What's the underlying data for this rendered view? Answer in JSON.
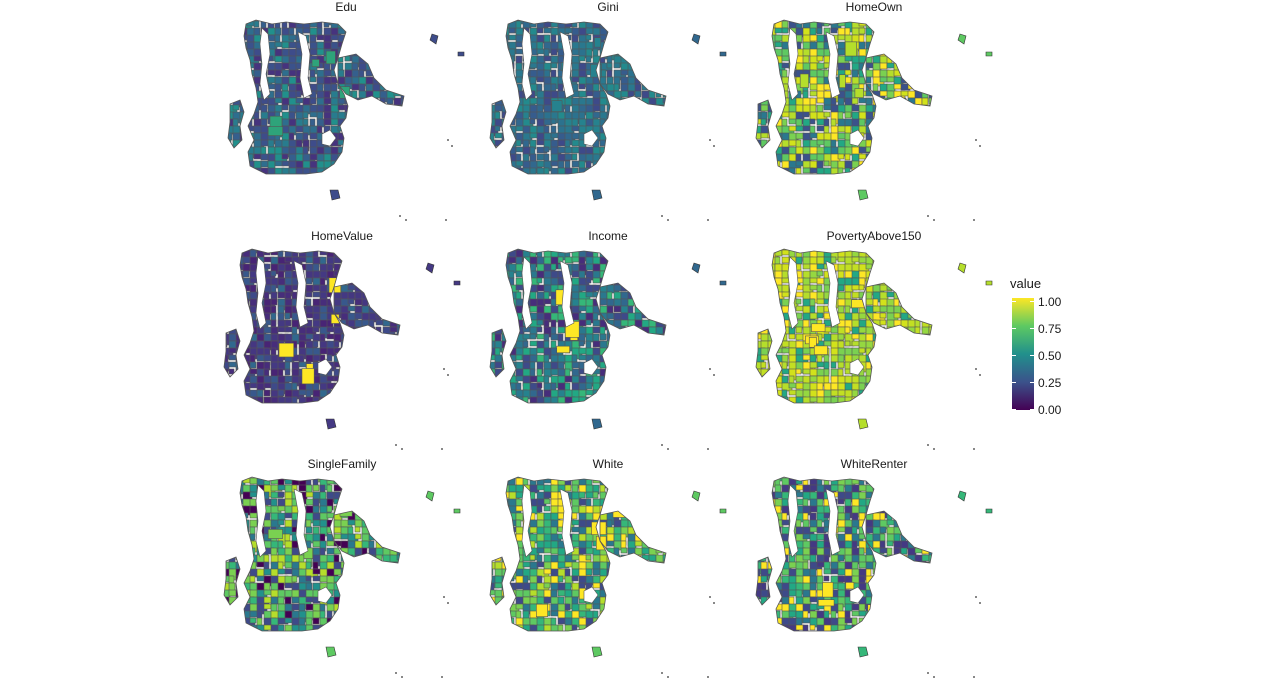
{
  "panels": [
    {
      "title": "Edu",
      "palette": [
        "#3e4c8a",
        "#355f8d",
        "#2e6e8e",
        "#287c8e",
        "#3b528b",
        "#21908c",
        "#46337e"
      ],
      "highlight": "#2ea37a",
      "level_mean": 0.25
    },
    {
      "title": "Gini",
      "palette": [
        "#31688e",
        "#2c728e",
        "#26828e",
        "#3e4a89",
        "#2a788e",
        "#238a8d",
        "#365c8d"
      ],
      "highlight": "#26828e",
      "level_mean": 0.35
    },
    {
      "title": "HomeOwn",
      "palette": [
        "#5ec962",
        "#7ad151",
        "#b5de2b",
        "#2a788e",
        "#22a884",
        "#d2e21b",
        "#3b528b",
        "#fde725"
      ],
      "highlight": "#b5de2b",
      "level_mean": 0.65
    },
    {
      "title": "HomeValue",
      "palette": [
        "#443983",
        "#3e4a89",
        "#453781",
        "#38588c",
        "#472d7b",
        "#482475",
        "#31688e"
      ],
      "highlight": "#fde725",
      "level_mean": 0.12
    },
    {
      "title": "Income",
      "palette": [
        "#31688e",
        "#2a788e",
        "#3e4a89",
        "#26828e",
        "#22a884",
        "#472d7b",
        "#35b779"
      ],
      "highlight": "#fde725",
      "level_mean": 0.3
    },
    {
      "title": "PovertyAbove150",
      "palette": [
        "#b5de2b",
        "#d2e21b",
        "#95d840",
        "#fde725",
        "#7ad151",
        "#22a884",
        "#c2df23"
      ],
      "highlight": "#fde725",
      "level_mean": 0.85
    },
    {
      "title": "SingleFamily",
      "palette": [
        "#5ec962",
        "#2a788e",
        "#35b779",
        "#21918c",
        "#7ad151",
        "#3e4a89",
        "#b5de2b",
        "#440154"
      ],
      "highlight": "#7ad151",
      "level_mean": 0.55
    },
    {
      "title": "White",
      "palette": [
        "#5ec962",
        "#7ad151",
        "#35b779",
        "#2a788e",
        "#b5de2b",
        "#22a884",
        "#3e4a89",
        "#fde725"
      ],
      "highlight": "#fde725",
      "level_mean": 0.6
    },
    {
      "title": "WhiteRenter",
      "palette": [
        "#35b779",
        "#5ec962",
        "#2a788e",
        "#7ad151",
        "#3e4a89",
        "#22a884",
        "#fde725",
        "#443983"
      ],
      "highlight": "#fde725",
      "level_mean": 0.5
    }
  ],
  "legend": {
    "title": "value",
    "ticks": [
      "1.00",
      "0.75",
      "0.50",
      "0.25",
      "0.00"
    ]
  },
  "colors": {
    "border": "#555555",
    "background": "#ffffff"
  }
}
